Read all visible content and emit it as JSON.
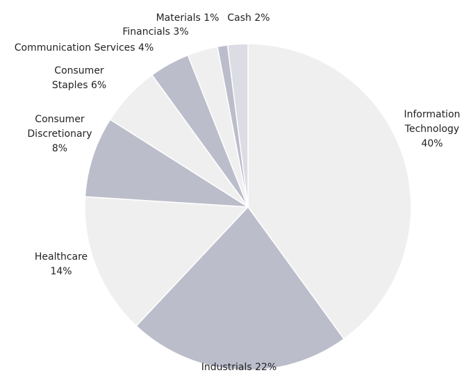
{
  "chart_data": {
    "type": "pie",
    "categories": [
      "Information Technology",
      "Industrials",
      "Healthcare",
      "Consumer Discretionary",
      "Consumer Staples",
      "Communication Services",
      "Financials",
      "Materials",
      "Cash"
    ],
    "values": [
      40,
      22,
      14,
      8,
      6,
      4,
      3,
      1,
      2
    ],
    "value_labels": [
      "40%",
      "22%",
      "14%",
      "8%",
      "6%",
      "4%",
      "3%",
      "1%",
      "2%"
    ],
    "colors": [
      "#efefef",
      "#bbbdcb",
      "#efefef",
      "#bbbdcb",
      "#efefef",
      "#bbbdcb",
      "#efefef",
      "#bbbdcb",
      "#dcdce4"
    ]
  }
}
